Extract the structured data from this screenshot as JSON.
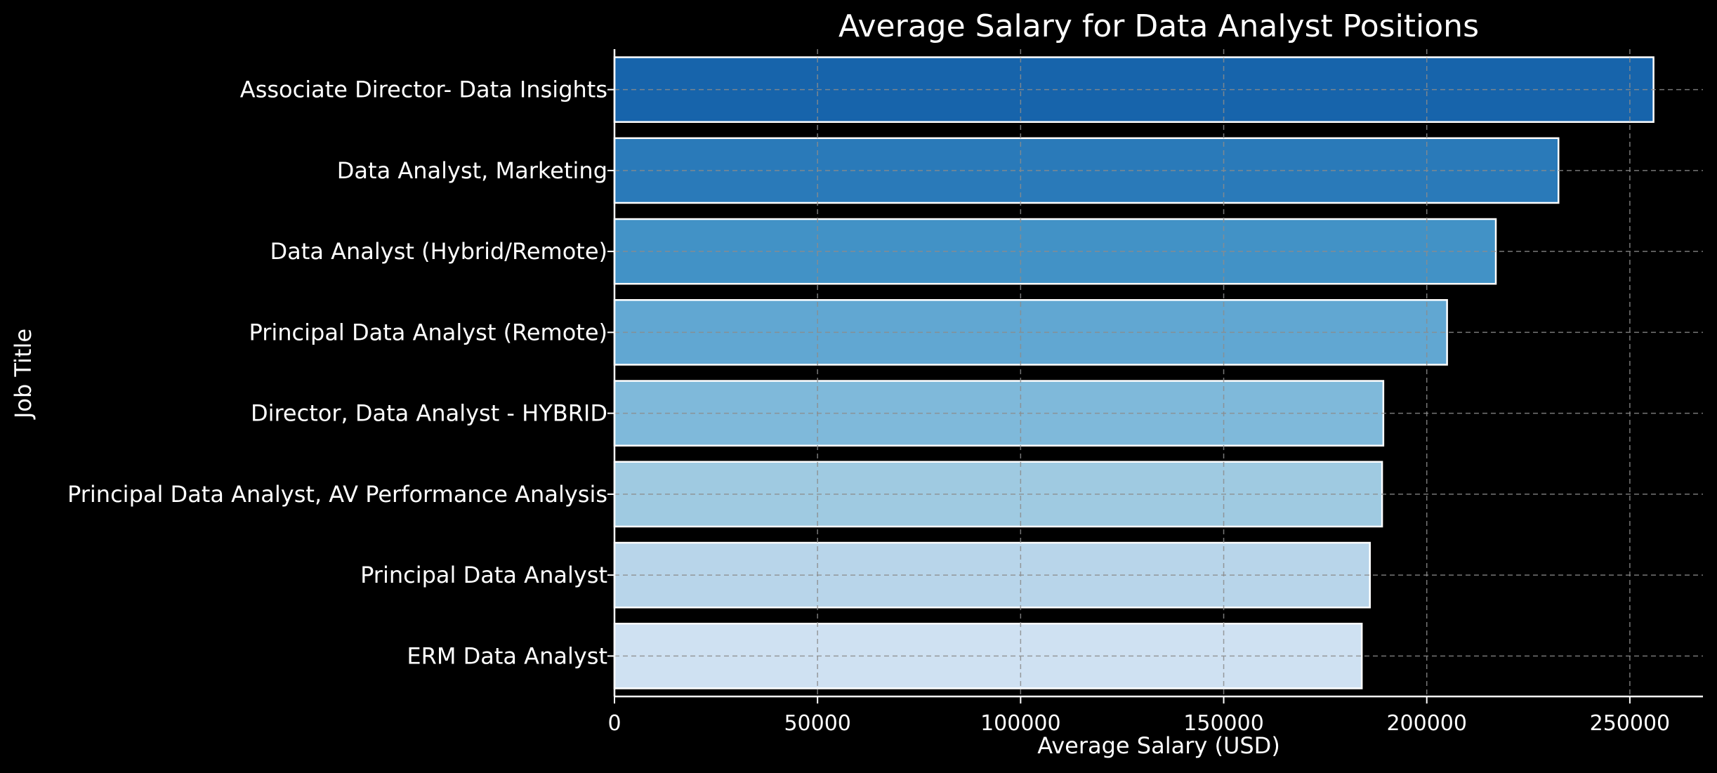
{
  "chart_data": {
    "type": "bar",
    "orientation": "horizontal",
    "title": "Average Salary for Data Analyst Positions",
    "xlabel": "Average Salary (USD)",
    "ylabel": "Job Title",
    "xlim": [
      0,
      268000
    ],
    "xticks": [
      0,
      50000,
      100000,
      150000,
      200000,
      250000
    ],
    "grid": true,
    "categories": [
      "Associate Director- Data Insights",
      "Data Analyst, Marketing",
      "Data Analyst (Hybrid/Remote)",
      "Principal Data Analyst (Remote)",
      "Director, Data Analyst - HYBRID",
      "Principal Data Analyst, AV Performance Analysis",
      "Principal Data Analyst",
      "ERM Data Analyst"
    ],
    "values": [
      255830,
      232423,
      217000,
      205000,
      189309,
      189000,
      186000,
      184000
    ],
    "colors": [
      "#1764ab",
      "#2a7ab9",
      "#4292c6",
      "#61a7d2",
      "#7fb9da",
      "#9fcae1",
      "#b8d5ea",
      "#cfe1f2"
    ]
  }
}
